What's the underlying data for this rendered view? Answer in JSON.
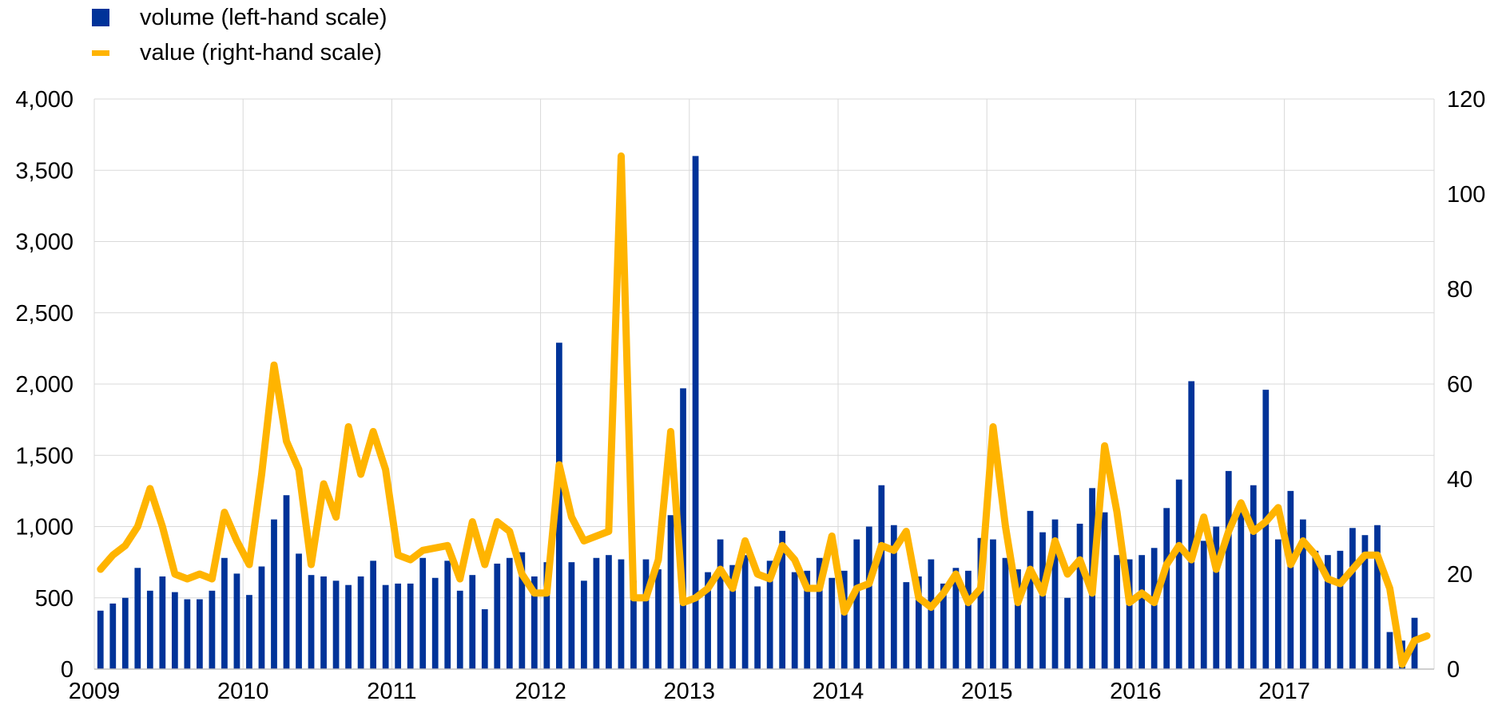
{
  "chart_data": {
    "type": "bar+line",
    "title": "",
    "legend": {
      "position": "top-left",
      "entries": [
        {
          "name": "volume (left-hand scale)",
          "mark": "bar",
          "color": "#003399"
        },
        {
          "name": "value (right-hand scale)",
          "mark": "line",
          "color": "#FFB400"
        }
      ]
    },
    "x_axis": {
      "ticks": [
        "2009",
        "2010",
        "2011",
        "2012",
        "2013",
        "2014",
        "2015",
        "2016",
        "2017"
      ]
    },
    "left_axis": {
      "range": [
        0,
        4000
      ],
      "ticks": [
        "0",
        "500",
        "1,000",
        "1,500",
        "2,000",
        "2,500",
        "3,000",
        "3,500",
        "4,000"
      ]
    },
    "right_axis": {
      "range": [
        0,
        120
      ],
      "ticks": [
        "0",
        "20",
        "40",
        "60",
        "80",
        "100",
        "120"
      ]
    },
    "grid": true,
    "months_per_year": 12,
    "series": [
      {
        "name": "volume (left-hand scale)",
        "axis": "left",
        "type": "bar",
        "color": "#003399",
        "values": [
          410,
          460,
          500,
          710,
          550,
          650,
          540,
          490,
          490,
          550,
          780,
          670,
          520,
          720,
          1050,
          1220,
          810,
          660,
          650,
          620,
          590,
          650,
          760,
          590,
          600,
          600,
          780,
          640,
          760,
          550,
          660,
          420,
          740,
          780,
          820,
          650,
          750,
          2290,
          750,
          620,
          780,
          800,
          770,
          620,
          770,
          700,
          1080,
          1970,
          3600,
          680,
          910,
          730,
          800,
          580,
          760,
          970,
          680,
          690,
          780,
          640,
          690,
          910,
          1000,
          1290,
          1010,
          610,
          650,
          770,
          600,
          710,
          690,
          920,
          910,
          780,
          700,
          1110,
          960,
          1050,
          500,
          1020,
          1270,
          1100,
          800,
          770,
          800,
          850,
          1130,
          1330,
          2020,
          900,
          1000,
          1390,
          1100,
          1290,
          1960,
          910,
          1250,
          1050,
          830,
          800,
          830,
          990,
          940,
          1010,
          260,
          200,
          360
        ]
      },
      {
        "name": "value (right-hand scale)",
        "axis": "right",
        "type": "line",
        "color": "#FFB400",
        "values": [
          21,
          24,
          26,
          30,
          38,
          30,
          20,
          19,
          20,
          19,
          33,
          27,
          22,
          41,
          64,
          48,
          42,
          22,
          39,
          32,
          51,
          41,
          50,
          42,
          24,
          23,
          25,
          25.5,
          26,
          19,
          31,
          22,
          31,
          29,
          20,
          16,
          16,
          43,
          32,
          27,
          28,
          29,
          108,
          15,
          15,
          23,
          50,
          14,
          15,
          17,
          21,
          17,
          27,
          20,
          19,
          26,
          23,
          17,
          17,
          28,
          12,
          17,
          18,
          26,
          25,
          29,
          15,
          13,
          16,
          20,
          14,
          17,
          51,
          30,
          14,
          21,
          16,
          27,
          20,
          23,
          16,
          47,
          33,
          14,
          16,
          14,
          22,
          26,
          23,
          32,
          21,
          29,
          35,
          29,
          31,
          34,
          22,
          27,
          24,
          19,
          18,
          21,
          24,
          24,
          17,
          1,
          6,
          7
        ]
      }
    ]
  }
}
